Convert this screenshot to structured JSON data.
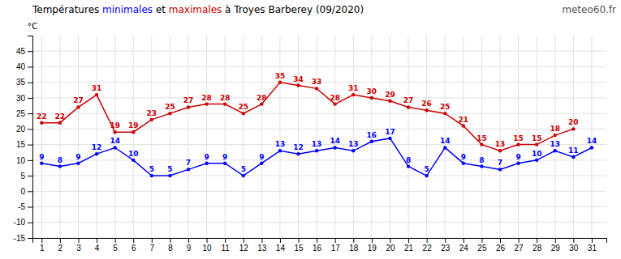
{
  "chart_data": {
    "type": "line",
    "title": "Températures minimales et maximales à Troyes Barberey (09/2020)",
    "y_label": "°C",
    "annotations": [
      "meteo60.fr"
    ],
    "x": [
      1,
      2,
      3,
      4,
      5,
      6,
      7,
      8,
      9,
      10,
      11,
      12,
      13,
      14,
      15,
      16,
      17,
      18,
      19,
      20,
      21,
      22,
      23,
      24,
      25,
      26,
      27,
      28,
      29,
      30,
      31
    ],
    "series": [
      {
        "name": "minimales",
        "color": "#0000ff",
        "marker": "circle",
        "values": [
          9,
          8,
          9,
          12,
          14,
          10,
          5,
          5,
          7,
          9,
          9,
          5,
          9,
          13,
          12,
          13,
          14,
          13,
          16,
          17,
          8,
          5,
          14,
          9,
          8,
          7,
          9,
          10,
          13,
          11,
          14
        ]
      },
      {
        "name": "maximales",
        "color": "#cc0000",
        "marker": "circle",
        "values": [
          22,
          22,
          27,
          31,
          19,
          19,
          23,
          25,
          27,
          28,
          28,
          25,
          28,
          35,
          34,
          33,
          28,
          31,
          30,
          29,
          27,
          26,
          25,
          21,
          15,
          13,
          15,
          15,
          18,
          20,
          null
        ]
      }
    ],
    "xlim": [
      0.5,
      31.8
    ],
    "xticks": [
      1,
      2,
      3,
      4,
      5,
      6,
      7,
      8,
      9,
      10,
      11,
      12,
      13,
      14,
      15,
      16,
      17,
      18,
      19,
      20,
      21,
      22,
      23,
      24,
      25,
      26,
      27,
      28,
      29,
      30,
      31
    ],
    "ylim": [
      -15,
      50
    ],
    "yticks": [
      -15,
      -10,
      -5,
      0,
      5,
      10,
      15,
      20,
      25,
      30,
      35,
      40,
      45
    ],
    "grid": true,
    "data_labels": true
  }
}
